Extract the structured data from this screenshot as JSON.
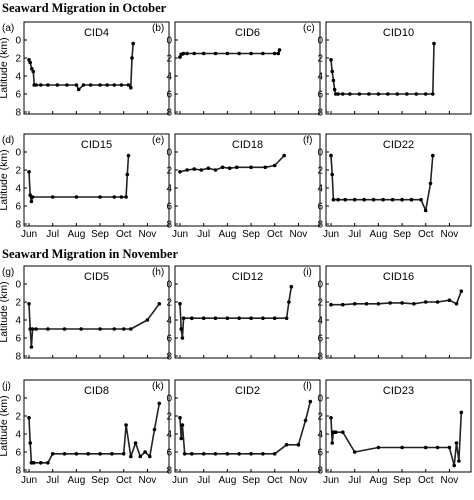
{
  "sections": [
    {
      "title": "Seaward Migration in October"
    },
    {
      "title": "Seaward Migration in November"
    }
  ],
  "axes": {
    "ylabel": "Latitude (km)",
    "yticks": [
      "0",
      "2",
      "4",
      "6",
      "8"
    ],
    "xticks": [
      "Jun",
      "Jul",
      "Aug",
      "Sep",
      "Oct",
      "Nov"
    ],
    "ylim": [
      0,
      8
    ],
    "y_inverted": true,
    "xlim_months": [
      0,
      5.7
    ]
  },
  "chart_data": [
    {
      "type": "line",
      "panel": "(a)",
      "name": "CID4",
      "x": [
        0.0,
        0.05,
        0.12,
        0.18,
        0.22,
        0.3,
        0.5,
        0.8,
        1.2,
        1.6,
        2.0,
        2.1,
        2.3,
        2.6,
        3.0,
        3.3,
        3.6,
        3.9,
        4.2,
        4.3,
        4.35,
        4.4
      ],
      "y": [
        2.2,
        2.5,
        3.2,
        3.5,
        5.0,
        5.0,
        5.0,
        5.0,
        5.0,
        5.0,
        5.0,
        5.5,
        5.0,
        5.0,
        5.0,
        5.0,
        5.0,
        5.0,
        5.0,
        5.3,
        2.0,
        0.4
      ]
    },
    {
      "type": "line",
      "panel": "(b)",
      "name": "CID6",
      "x": [
        0.0,
        0.05,
        0.1,
        0.15,
        0.3,
        0.6,
        1.0,
        1.5,
        2.0,
        2.5,
        3.0,
        3.5,
        4.0,
        4.15,
        4.2
      ],
      "y": [
        1.9,
        1.6,
        1.55,
        1.5,
        1.5,
        1.5,
        1.5,
        1.5,
        1.5,
        1.5,
        1.5,
        1.5,
        1.5,
        1.5,
        1.1
      ]
    },
    {
      "type": "line",
      "panel": "(c)",
      "name": "CID10",
      "x": [
        0.0,
        0.05,
        0.1,
        0.15,
        0.2,
        0.3,
        0.5,
        0.8,
        1.2,
        1.6,
        2.0,
        2.4,
        2.8,
        3.2,
        3.6,
        4.0,
        4.3,
        4.35
      ],
      "y": [
        2.2,
        3.5,
        4.5,
        5.5,
        6.0,
        6.0,
        6.0,
        6.0,
        6.0,
        6.0,
        6.0,
        6.0,
        6.0,
        6.0,
        6.0,
        6.0,
        6.0,
        0.4
      ]
    },
    {
      "type": "line",
      "panel": "(d)",
      "name": "CID15",
      "x": [
        0.0,
        0.05,
        0.1,
        0.15,
        1.0,
        2.0,
        3.0,
        3.6,
        3.9,
        4.1,
        4.15,
        4.2
      ],
      "y": [
        2.2,
        4.8,
        5.5,
        5.0,
        5.0,
        5.0,
        5.0,
        5.0,
        5.0,
        5.0,
        2.5,
        0.4
      ]
    },
    {
      "type": "line",
      "panel": "(e)",
      "name": "CID18",
      "x": [
        0.0,
        0.3,
        0.6,
        0.9,
        1.2,
        1.5,
        1.8,
        2.1,
        2.4,
        3.0,
        3.6,
        4.0,
        4.4
      ],
      "y": [
        2.2,
        2.0,
        1.9,
        2.0,
        1.8,
        2.0,
        1.7,
        1.8,
        1.7,
        1.7,
        1.7,
        1.5,
        0.4
      ]
    },
    {
      "type": "line",
      "panel": "(f)",
      "name": "CID22",
      "x": [
        0.0,
        0.05,
        0.1,
        0.3,
        0.6,
        1.0,
        1.4,
        1.8,
        2.2,
        2.6,
        3.0,
        3.4,
        3.8,
        4.0,
        4.2,
        4.3
      ],
      "y": [
        0.4,
        2.5,
        5.3,
        5.3,
        5.3,
        5.3,
        5.3,
        5.3,
        5.3,
        5.3,
        5.3,
        5.3,
        5.3,
        6.5,
        3.5,
        0.4
      ]
    },
    {
      "type": "line",
      "panel": "(g)",
      "name": "CID5",
      "x": [
        0.0,
        0.05,
        0.1,
        0.15,
        0.3,
        0.8,
        1.5,
        2.2,
        3.0,
        3.6,
        4.0,
        4.3,
        5.0,
        5.5
      ],
      "y": [
        2.2,
        5.0,
        7.0,
        5.0,
        5.0,
        5.0,
        5.0,
        5.0,
        5.0,
        5.0,
        5.0,
        5.0,
        4.0,
        2.2
      ]
    },
    {
      "type": "line",
      "panel": "(h)",
      "name": "CID12",
      "x": [
        0.0,
        0.05,
        0.1,
        0.15,
        0.5,
        1.0,
        1.5,
        2.0,
        2.5,
        3.0,
        3.5,
        4.0,
        4.5,
        4.6,
        4.7
      ],
      "y": [
        2.2,
        5.0,
        6.0,
        3.8,
        3.8,
        3.8,
        3.8,
        3.8,
        3.8,
        3.8,
        3.8,
        3.8,
        3.8,
        2.0,
        0.3
      ]
    },
    {
      "type": "line",
      "panel": "(i)",
      "name": "CID16",
      "x": [
        0.0,
        0.5,
        1.0,
        1.5,
        2.0,
        2.5,
        3.0,
        3.5,
        4.0,
        4.5,
        5.0,
        5.3,
        5.5
      ],
      "y": [
        2.3,
        2.3,
        2.2,
        2.2,
        2.2,
        2.1,
        2.1,
        2.2,
        2.0,
        2.0,
        1.8,
        2.2,
        0.8
      ]
    },
    {
      "type": "line",
      "panel": "(j)",
      "name": "CID8",
      "x": [
        0.0,
        0.05,
        0.1,
        0.2,
        0.5,
        0.8,
        1.0,
        1.5,
        2.0,
        2.5,
        3.0,
        3.5,
        4.0,
        4.1,
        4.3,
        4.5,
        4.7,
        4.9,
        5.1,
        5.3,
        5.5
      ],
      "y": [
        2.2,
        5.0,
        7.2,
        7.2,
        7.2,
        7.2,
        6.2,
        6.2,
        6.2,
        6.2,
        6.2,
        6.2,
        6.2,
        3.0,
        6.5,
        5.0,
        6.5,
        6.0,
        6.5,
        3.5,
        0.6
      ]
    },
    {
      "type": "line",
      "panel": "(k)",
      "name": "CID2",
      "x": [
        0.0,
        0.05,
        0.1,
        0.2,
        0.5,
        1.0,
        1.5,
        2.0,
        2.5,
        3.0,
        3.5,
        4.0,
        4.5,
        5.0,
        5.3,
        5.5
      ],
      "y": [
        2.2,
        4.5,
        3.0,
        6.2,
        6.2,
        6.2,
        6.2,
        6.2,
        6.2,
        6.2,
        6.2,
        6.2,
        5.2,
        5.2,
        2.5,
        0.4
      ]
    },
    {
      "type": "line",
      "panel": "(l)",
      "name": "CID23",
      "x": [
        0.0,
        0.05,
        0.1,
        0.2,
        0.5,
        1.0,
        2.0,
        3.0,
        4.0,
        4.5,
        5.0,
        5.2,
        5.3,
        5.4,
        5.5
      ],
      "y": [
        2.2,
        5.0,
        3.8,
        3.8,
        3.8,
        6.0,
        5.5,
        5.5,
        5.5,
        5.5,
        5.5,
        7.5,
        5.0,
        7.0,
        1.6
      ]
    }
  ]
}
